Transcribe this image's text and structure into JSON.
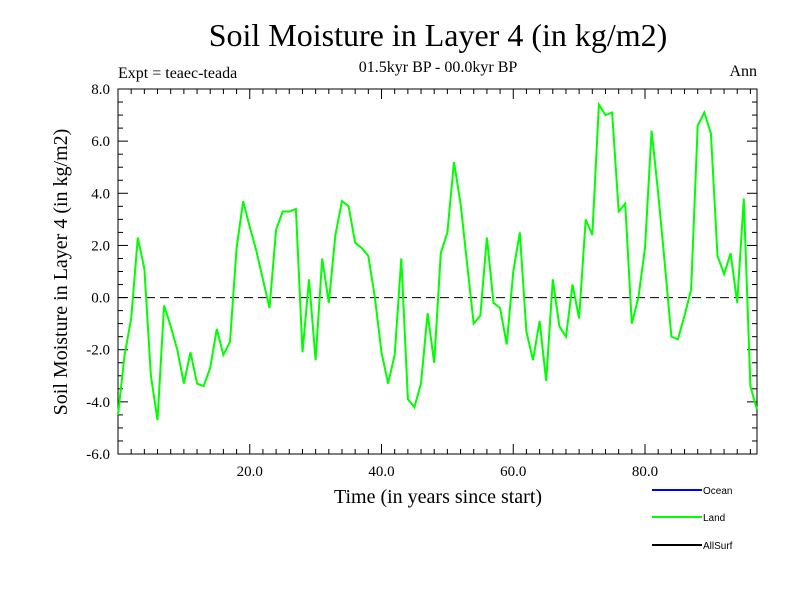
{
  "chart_data": {
    "type": "line",
    "title": "Soil Moisture in Layer 4 (in kg/m2)",
    "subtitle": "01.5kyr BP - 00.0kyr BP",
    "experiment": "Expt = teaec-teada",
    "season": "Ann",
    "xlabel": "Time (in years since start)",
    "ylabel": "Soil Moisture in Layer 4 (in kg/m2)",
    "xlim": [
      0,
      97
    ],
    "ylim": [
      -6,
      8
    ],
    "xticks": [
      20,
      40,
      60,
      80
    ],
    "xtick_labels": [
      "20.0",
      "40.0",
      "60.0",
      "80.0"
    ],
    "yticks": [
      -6,
      -4,
      -2,
      0,
      2,
      4,
      6,
      8
    ],
    "ytick_labels": [
      "-6.0",
      "-4.0",
      "-2.0",
      "0.0",
      "2.0",
      "4.0",
      "6.0",
      "8.0"
    ],
    "zero_line": 0,
    "legend_position": "bottom-right",
    "legend": [
      {
        "name": "Ocean",
        "color": "#0000ff"
      },
      {
        "name": "Land",
        "color": "#00ff00"
      },
      {
        "name": "AllSurf",
        "color": "#000000"
      }
    ],
    "series": [
      {
        "name": "Land",
        "color": "#00ff00",
        "x": [
          0,
          1,
          2,
          3,
          4,
          5,
          6,
          7,
          8,
          9,
          10,
          11,
          12,
          13,
          14,
          15,
          16,
          17,
          18,
          19,
          20,
          21,
          22,
          23,
          24,
          25,
          26,
          27,
          28,
          29,
          30,
          31,
          32,
          33,
          34,
          35,
          36,
          37,
          38,
          39,
          40,
          41,
          42,
          43,
          44,
          45,
          46,
          47,
          48,
          49,
          50,
          51,
          52,
          53,
          54,
          55,
          56,
          57,
          58,
          59,
          60,
          61,
          62,
          63,
          64,
          65,
          66,
          67,
          68,
          69,
          70,
          71,
          72,
          73,
          74,
          75,
          76,
          77,
          78,
          79,
          80,
          81,
          82,
          83,
          84,
          85,
          86,
          87,
          88,
          89,
          90,
          91,
          92,
          93,
          94,
          95,
          96,
          97
        ],
        "values": [
          -4.5,
          -2.2,
          -0.8,
          2.3,
          1.1,
          -3.0,
          -4.7,
          -0.3,
          -1.1,
          -2.0,
          -3.3,
          -2.1,
          -3.3,
          -3.4,
          -2.7,
          -1.2,
          -2.2,
          -1.7,
          1.9,
          3.7,
          2.7,
          1.8,
          0.7,
          -0.4,
          2.6,
          3.3,
          3.3,
          3.4,
          -2.1,
          0.7,
          -2.4,
          1.5,
          -0.2,
          2.4,
          3.7,
          3.5,
          2.1,
          1.9,
          1.6,
          0.0,
          -2.1,
          -3.3,
          -2.2,
          1.5,
          -3.9,
          -4.2,
          -3.3,
          -0.6,
          -2.5,
          1.7,
          2.5,
          5.2,
          3.6,
          1.3,
          -1.0,
          -0.7,
          2.3,
          -0.2,
          -0.4,
          -1.8,
          1.0,
          2.5,
          -1.3,
          -2.4,
          -0.9,
          -3.2,
          0.7,
          -1.1,
          -1.5,
          0.5,
          -0.8,
          3.0,
          2.4,
          7.4,
          7.0,
          7.1,
          3.3,
          3.6,
          -1.0,
          0.0,
          1.9,
          6.4,
          4.0,
          1.3,
          -1.5,
          -1.6,
          -0.7,
          0.3,
          6.6,
          7.1,
          6.3,
          1.6,
          0.9,
          1.7,
          -0.2,
          3.8,
          -3.4,
          -4.3
        ]
      }
    ]
  }
}
